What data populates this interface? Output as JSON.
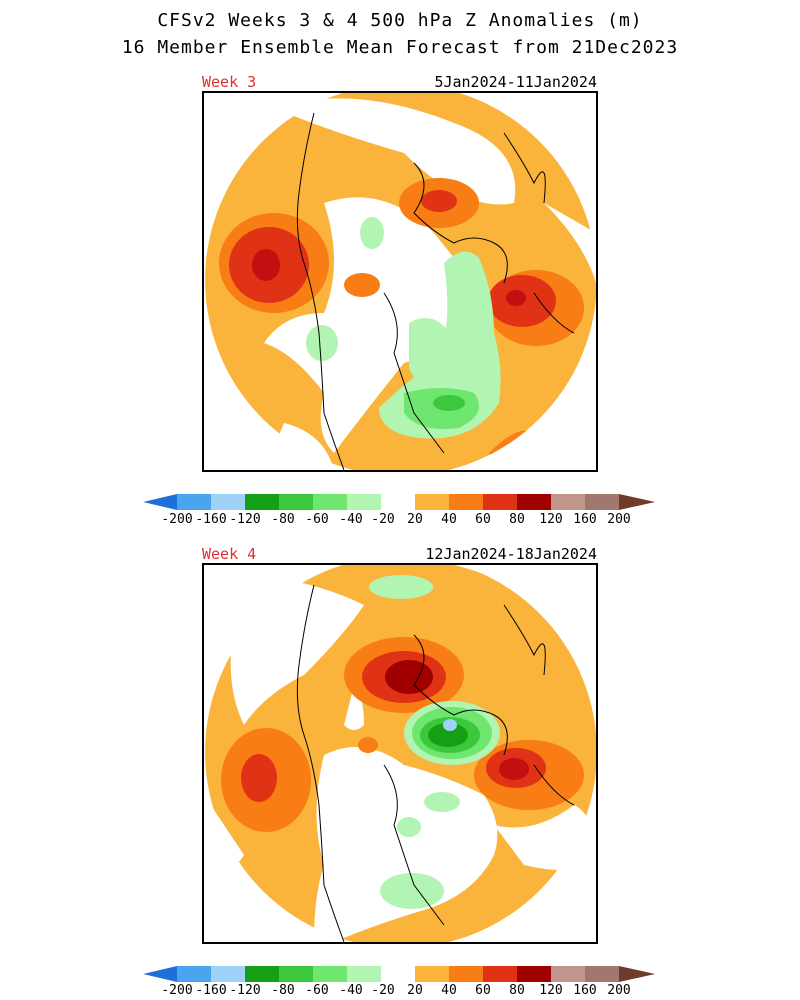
{
  "title_line1": "CFSv2 Weeks 3 & 4 500 hPa Z Anomalies (m)",
  "title_line2": "16 Member Ensemble Mean Forecast from 21Dec2023",
  "panels": [
    {
      "label": "Week 3",
      "dates": "5Jan2024-11Jan2024"
    },
    {
      "label": "Week 4",
      "dates": "12Jan2024-18Jan2024"
    }
  ],
  "colorbar": {
    "ticks": [
      "-200",
      "-160",
      "-120",
      "-80",
      "-60",
      "-40",
      "-20",
      "20",
      "40",
      "60",
      "80",
      "120",
      "160",
      "200"
    ],
    "colors": [
      "#1e6fd9",
      "#4aa4ee",
      "#9fd2f7",
      "#14a014",
      "#3cc83c",
      "#6fe66f",
      "#b2f4b2",
      "#ffffff",
      "#fab43c",
      "#f77d14",
      "#e03214",
      "#c30f0f",
      "#a00000",
      "#c0968c",
      "#a07870",
      "#6e3c28"
    ]
  }
}
